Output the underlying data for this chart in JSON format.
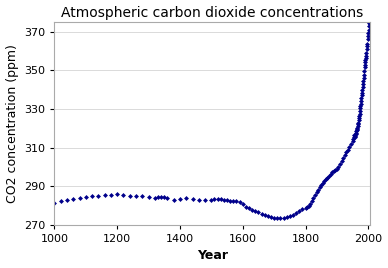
{
  "title": "Atmospheric carbon dioxide concentrations",
  "xlabel": "Year",
  "ylabel": "CO2 concentration (ppm)",
  "xlim": [
    1000,
    2005
  ],
  "ylim": [
    270,
    375
  ],
  "yticks": [
    270,
    290,
    310,
    330,
    350,
    370
  ],
  "xticks": [
    1000,
    1200,
    1400,
    1600,
    1800,
    2000
  ],
  "dot_color": "#00008B",
  "marker": "D",
  "markersize": 2.5,
  "background_color": "#ffffff",
  "plot_bg_color": "#ffffff",
  "title_fontsize": 10,
  "label_fontsize": 9,
  "co2_data": [
    [
      1000,
      281.5
    ],
    [
      1020,
      282.2
    ],
    [
      1040,
      283.0
    ],
    [
      1060,
      283.5
    ],
    [
      1080,
      283.8
    ],
    [
      1100,
      284.3
    ],
    [
      1120,
      284.8
    ],
    [
      1140,
      285.0
    ],
    [
      1160,
      285.5
    ],
    [
      1180,
      285.6
    ],
    [
      1200,
      285.8
    ],
    [
      1220,
      285.5
    ],
    [
      1240,
      285.2
    ],
    [
      1260,
      285.0
    ],
    [
      1280,
      284.7
    ],
    [
      1300,
      284.2
    ],
    [
      1320,
      284.0
    ],
    [
      1330,
      284.2
    ],
    [
      1340,
      284.5
    ],
    [
      1350,
      284.3
    ],
    [
      1360,
      283.8
    ],
    [
      1380,
      283.0
    ],
    [
      1400,
      283.5
    ],
    [
      1420,
      283.8
    ],
    [
      1440,
      283.5
    ],
    [
      1460,
      283.0
    ],
    [
      1480,
      282.7
    ],
    [
      1500,
      283.0
    ],
    [
      1510,
      283.2
    ],
    [
      1520,
      283.4
    ],
    [
      1530,
      283.2
    ],
    [
      1540,
      283.0
    ],
    [
      1550,
      282.8
    ],
    [
      1560,
      282.6
    ],
    [
      1570,
      282.4
    ],
    [
      1580,
      282.2
    ],
    [
      1590,
      281.8
    ],
    [
      1600,
      281.0
    ],
    [
      1610,
      279.5
    ],
    [
      1620,
      278.5
    ],
    [
      1630,
      277.8
    ],
    [
      1640,
      277.0
    ],
    [
      1650,
      276.5
    ],
    [
      1660,
      275.8
    ],
    [
      1670,
      275.2
    ],
    [
      1680,
      274.5
    ],
    [
      1690,
      274.0
    ],
    [
      1700,
      273.8
    ],
    [
      1710,
      273.5
    ],
    [
      1720,
      273.5
    ],
    [
      1730,
      273.8
    ],
    [
      1740,
      274.0
    ],
    [
      1750,
      274.5
    ],
    [
      1760,
      275.0
    ],
    [
      1770,
      276.0
    ],
    [
      1780,
      277.0
    ],
    [
      1790,
      278.0
    ],
    [
      1800,
      278.5
    ],
    [
      1805,
      279.0
    ],
    [
      1810,
      280.0
    ],
    [
      1815,
      281.0
    ],
    [
      1820,
      282.5
    ],
    [
      1825,
      284.0
    ],
    [
      1830,
      285.5
    ],
    [
      1835,
      286.8
    ],
    [
      1840,
      288.0
    ],
    [
      1845,
      289.5
    ],
    [
      1850,
      290.5
    ],
    [
      1855,
      291.5
    ],
    [
      1860,
      292.5
    ],
    [
      1865,
      293.5
    ],
    [
      1870,
      294.5
    ],
    [
      1875,
      295.5
    ],
    [
      1880,
      296.5
    ],
    [
      1885,
      297.5
    ],
    [
      1890,
      298.0
    ],
    [
      1895,
      298.5
    ],
    [
      1900,
      299.0
    ],
    [
      1905,
      300.0
    ],
    [
      1910,
      301.5
    ],
    [
      1915,
      303.0
    ],
    [
      1920,
      304.5
    ],
    [
      1925,
      306.0
    ],
    [
      1930,
      307.5
    ],
    [
      1935,
      309.0
    ],
    [
      1940,
      310.5
    ],
    [
      1945,
      312.0
    ],
    [
      1950,
      313.5
    ],
    [
      1952,
      314.5
    ],
    [
      1954,
      315.5
    ],
    [
      1956,
      316.5
    ],
    [
      1958,
      315.5
    ],
    [
      1959,
      316.0
    ],
    [
      1960,
      317.0
    ],
    [
      1961,
      317.5
    ],
    [
      1962,
      318.5
    ],
    [
      1963,
      319.0
    ],
    [
      1964,
      319.5
    ],
    [
      1965,
      320.0
    ],
    [
      1966,
      321.0
    ],
    [
      1967,
      322.0
    ],
    [
      1968,
      323.0
    ],
    [
      1969,
      324.5
    ],
    [
      1970,
      325.5
    ],
    [
      1971,
      326.5
    ],
    [
      1972,
      327.5
    ],
    [
      1973,
      329.0
    ],
    [
      1974,
      330.5
    ],
    [
      1975,
      331.5
    ],
    [
      1976,
      332.5
    ],
    [
      1977,
      334.0
    ],
    [
      1978,
      335.5
    ],
    [
      1979,
      337.0
    ],
    [
      1980,
      338.5
    ],
    [
      1981,
      340.0
    ],
    [
      1982,
      341.5
    ],
    [
      1983,
      343.0
    ],
    [
      1984,
      344.5
    ],
    [
      1985,
      346.0
    ],
    [
      1986,
      347.5
    ],
    [
      1987,
      349.5
    ],
    [
      1988,
      351.5
    ],
    [
      1989,
      353.0
    ],
    [
      1990,
      354.5
    ],
    [
      1991,
      355.5
    ],
    [
      1992,
      356.5
    ],
    [
      1993,
      357.5
    ],
    [
      1994,
      359.0
    ],
    [
      1995,
      361.0
    ],
    [
      1996,
      362.5
    ],
    [
      1997,
      363.5
    ],
    [
      1998,
      366.5
    ],
    [
      1999,
      368.0
    ],
    [
      2000,
      369.5
    ],
    [
      2001,
      371.0
    ],
    [
      2002,
      373.0
    ],
    [
      2003,
      374.5
    ],
    [
      2004,
      374.0
    ]
  ]
}
